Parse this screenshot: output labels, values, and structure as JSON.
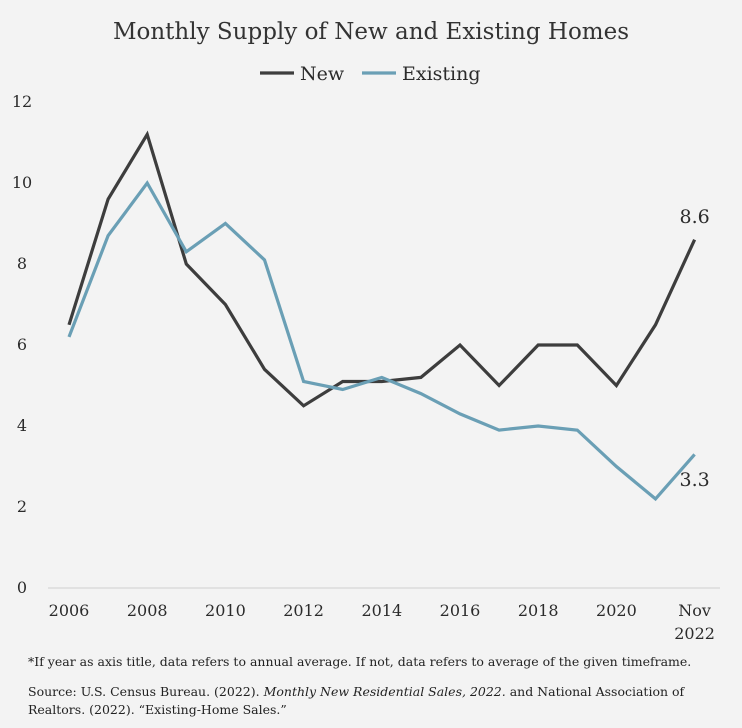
{
  "chart_data": {
    "type": "line",
    "title": "Monthly Supply of New and Existing Homes",
    "xlabel": "",
    "ylabel": "",
    "x_categories": [
      "2006",
      "2007",
      "2008",
      "2009",
      "2010",
      "2011",
      "2012",
      "2013",
      "2014",
      "2015",
      "2016",
      "2017",
      "2018",
      "2019",
      "2020",
      "2021",
      "Nov 2022"
    ],
    "x_tick_labels": [
      "2006",
      "2008",
      "2010",
      "2012",
      "2014",
      "2016",
      "2018",
      "2020",
      "Nov",
      "2022"
    ],
    "ylim": [
      0,
      12
    ],
    "yticks": [
      "0",
      "2",
      "4",
      "6",
      "8",
      "10",
      "12"
    ],
    "grid": false,
    "legend_position": "top-center",
    "series": [
      {
        "name": "New",
        "color": "#3d3d3d",
        "values": [
          6.5,
          9.6,
          11.2,
          8.0,
          7.0,
          5.4,
          4.5,
          5.1,
          5.1,
          5.2,
          6.0,
          5.0,
          6.0,
          6.0,
          5.0,
          6.5,
          8.6
        ]
      },
      {
        "name": "Existing",
        "color": "#6a9fb5",
        "values": [
          6.2,
          8.7,
          10.0,
          8.3,
          9.0,
          8.1,
          5.1,
          4.9,
          5.2,
          4.8,
          4.3,
          3.9,
          4.0,
          3.9,
          3.0,
          2.2,
          3.3
        ]
      }
    ],
    "end_labels": [
      "8.6",
      "3.3"
    ]
  },
  "footnote": "*If year as axis title, data refers to annual average. If not, data refers to average of the given timeframe.",
  "source": {
    "prefix": "Source: U.S. Census Bureau. (2022). ",
    "italic": "Monthly New Residential Sales, 2022.",
    "suffix": " and National Association of Realtors. (2022). “Existing-Home Sales.”"
  }
}
